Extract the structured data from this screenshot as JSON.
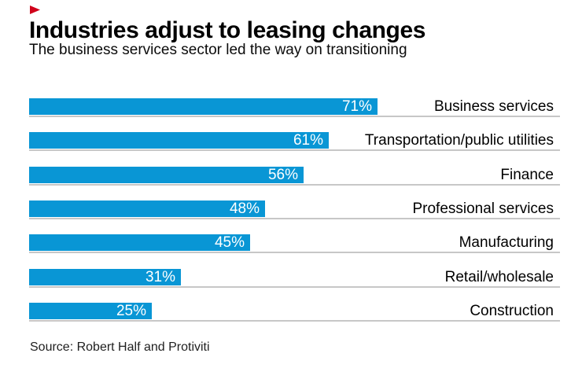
{
  "icons": {
    "brand_arrow_color": "#d0021b"
  },
  "chart_data": {
    "type": "bar",
    "orientation": "horizontal",
    "title": "Industries adjust to leasing changes",
    "subtitle": "The business services sector led the way on transitioning",
    "source": "Source: Robert Half and Protiviti",
    "categories": [
      "Business services",
      "Transportation/public utilities",
      "Finance",
      "Professional services",
      "Manufacturing",
      "Retail/wholesale",
      "Construction"
    ],
    "values": [
      71,
      61,
      56,
      48,
      45,
      31,
      25
    ],
    "value_labels": [
      "71%",
      "61%",
      "56%",
      "48%",
      "45%",
      "31%",
      "25%"
    ],
    "unit": "%",
    "xlim": [
      0,
      108
    ],
    "grid": false,
    "legend": false,
    "value_label_position": "inside-end",
    "category_label_position": "right-aligned",
    "bar_color": "#0996d5",
    "baseline_color": "#c7c7c7",
    "text_color": "#000000",
    "value_text_color": "#ffffff"
  }
}
